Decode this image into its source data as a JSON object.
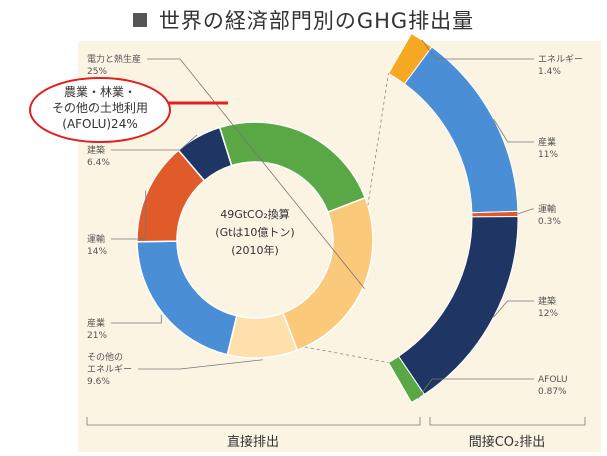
{
  "title": "世界の経済部門別のGHG排出量",
  "chart_data": [
    {
      "type": "pie",
      "variant": "donut",
      "section_label": "直接排出",
      "center_text": [
        "49GtCO₂換算",
        "(Gtは10億トン)",
        "(2010年)"
      ],
      "slices": [
        {
          "name": "電力と熱生産",
          "value": 25,
          "label": "25%",
          "color": "#fbc97a"
        },
        {
          "name": "その他のエネルギー",
          "value": 9.6,
          "label": "9.6%",
          "color": "#fde0ac"
        },
        {
          "name": "産業",
          "value": 21,
          "label": "21%",
          "color": "#4a8fd6"
        },
        {
          "name": "運輸",
          "value": 14,
          "label": "14%",
          "color": "#e15a2a"
        },
        {
          "name": "建築",
          "value": 6.4,
          "label": "6.4%",
          "color": "#1f3564"
        },
        {
          "name": "農業、林業、その他の土地利用",
          "value": 24,
          "label": "24%",
          "color": "#5aa845"
        }
      ]
    },
    {
      "type": "pie",
      "variant": "arc-breakdown",
      "section_label": "間接CO₂排出",
      "slices": [
        {
          "name": "エネルギー",
          "value": 1.4,
          "label": "1.4%",
          "color": "#f7a823"
        },
        {
          "name": "産業",
          "value": 11,
          "label": "11%",
          "color": "#4a8fd6"
        },
        {
          "name": "運輸",
          "value": 0.3,
          "label": "0.3%",
          "color": "#e15a2a"
        },
        {
          "name": "建築",
          "value": 12,
          "label": "12%",
          "color": "#1f3564"
        },
        {
          "name": "AFOLU",
          "value": 0.87,
          "label": "0.87%",
          "color": "#5aa845"
        }
      ]
    }
  ],
  "callout": {
    "lines": [
      "農業・林業・",
      "その他の土地利用",
      "(AFOLU)24%"
    ],
    "ellipse_color": "#e02020",
    "line_color": "#e02020"
  }
}
